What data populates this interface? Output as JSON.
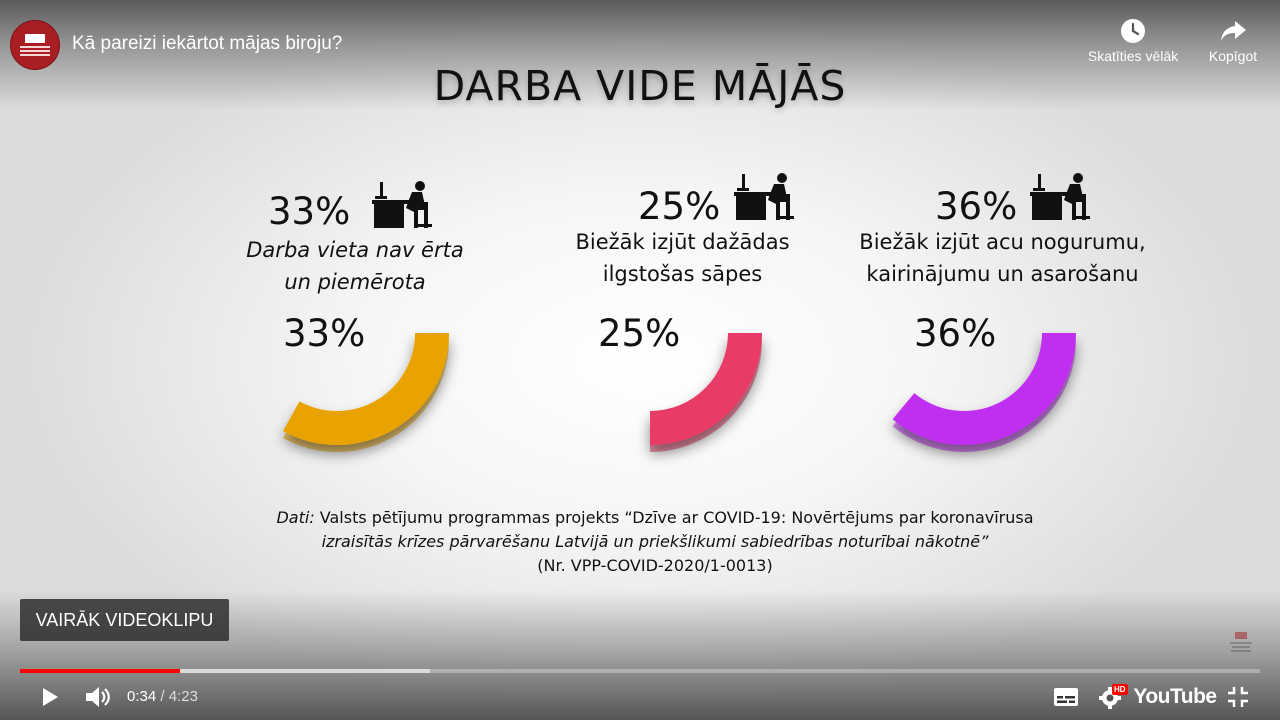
{
  "player": {
    "video_title": "Kā pareizi iekārtot mājas biroju?",
    "actions": {
      "watch_later": "Skatīties vēlāk",
      "share": "Kopīgot"
    },
    "more_videos": "VAIRĀK VIDEOKLIPU",
    "time": {
      "current": "0:34",
      "separator": " / ",
      "duration": "4:23"
    },
    "progress": {
      "played_fraction": 0.129,
      "buffered_fraction": 0.331
    },
    "youtube_label": "YouTube",
    "hd_badge": "HD",
    "icons": [
      "play-icon",
      "volume-icon",
      "subtitles-icon",
      "settings-icon",
      "fullscreen-exit-icon",
      "clock-icon",
      "share-arrow-icon"
    ]
  },
  "slide": {
    "headline": "DARBA VIDE MĀJĀS",
    "stats": [
      {
        "percent": "33%",
        "value": 33,
        "label_lines": [
          "Darba vieta nav ērta",
          "un piemērota"
        ],
        "color": "#e8a300"
      },
      {
        "percent": "25%",
        "value": 25,
        "label_lines": [
          "Biežāk izjūt dažādas",
          "ilgstošas sāpes"
        ],
        "color": "#e83a66"
      },
      {
        "percent": "36%",
        "value": 36,
        "label_lines": [
          "Biežāk izjūt acu nogurumu,",
          "kairinājumu un asarošanu"
        ],
        "color": "#c02ff0"
      }
    ],
    "source": {
      "prefix": "Dati:",
      "line1": " Valsts pētījumu programmas projekts “Dzīve ar COVID-19: Novērtējums par koronavīrusa",
      "line2": "izraisītās krīzes pārvarēšanu Latvijā un priekšlikumi sabiedrības noturībai nākotnē”",
      "line3": "(Nr. VPP-COVID-2020/1-0013)"
    }
  }
}
